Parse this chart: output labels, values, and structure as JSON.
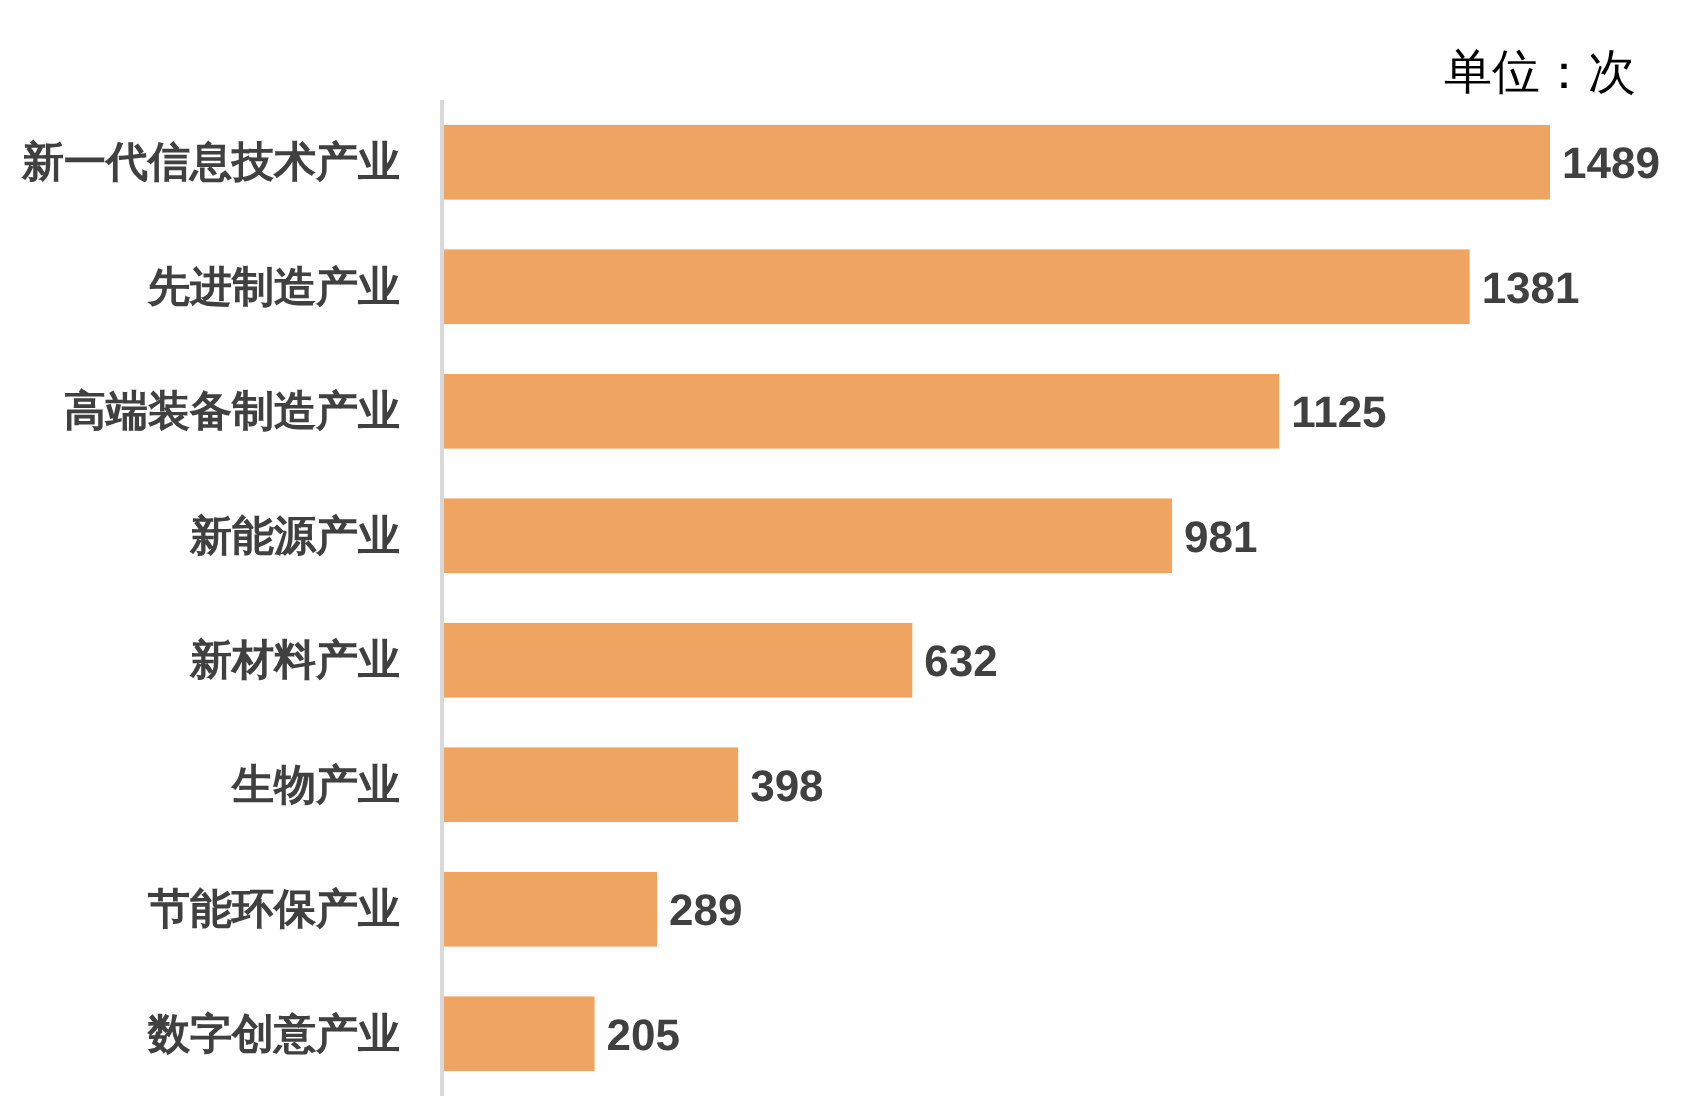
{
  "chart_data": {
    "type": "bar",
    "orientation": "horizontal",
    "categories": [
      "新一代信息技术产业",
      "先进制造产业",
      "高端装备制造产业",
      "新能源产业",
      "新材料产业",
      "生物产业",
      "节能环保产业",
      "数字创意产业"
    ],
    "values": [
      1489,
      1381,
      1125,
      981,
      632,
      398,
      289,
      205
    ],
    "color": "#f0a462",
    "data_labels": true,
    "annotations": [
      "单位：次"
    ]
  }
}
